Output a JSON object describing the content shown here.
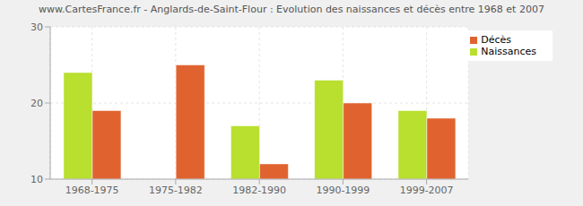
{
  "chart_data": {
    "type": "bar",
    "title": "www.CartesFrance.fr - Anglards-de-Saint-Flour : Evolution des naissances et décès entre 1968 et 2007",
    "categories": [
      "1968-1975",
      "1975-1982",
      "1982-1990",
      "1990-1999",
      "1999-2007"
    ],
    "series": [
      {
        "name": "Naissances",
        "color": "#b9df2f",
        "values": [
          24,
          10,
          17,
          23,
          19
        ]
      },
      {
        "name": "Décès",
        "color": "#e0632f",
        "values": [
          19,
          25,
          12,
          20,
          18
        ]
      }
    ],
    "ylim": [
      10,
      30
    ],
    "yticks": [
      10,
      20,
      30
    ],
    "grid": true,
    "legend": "upper right"
  }
}
